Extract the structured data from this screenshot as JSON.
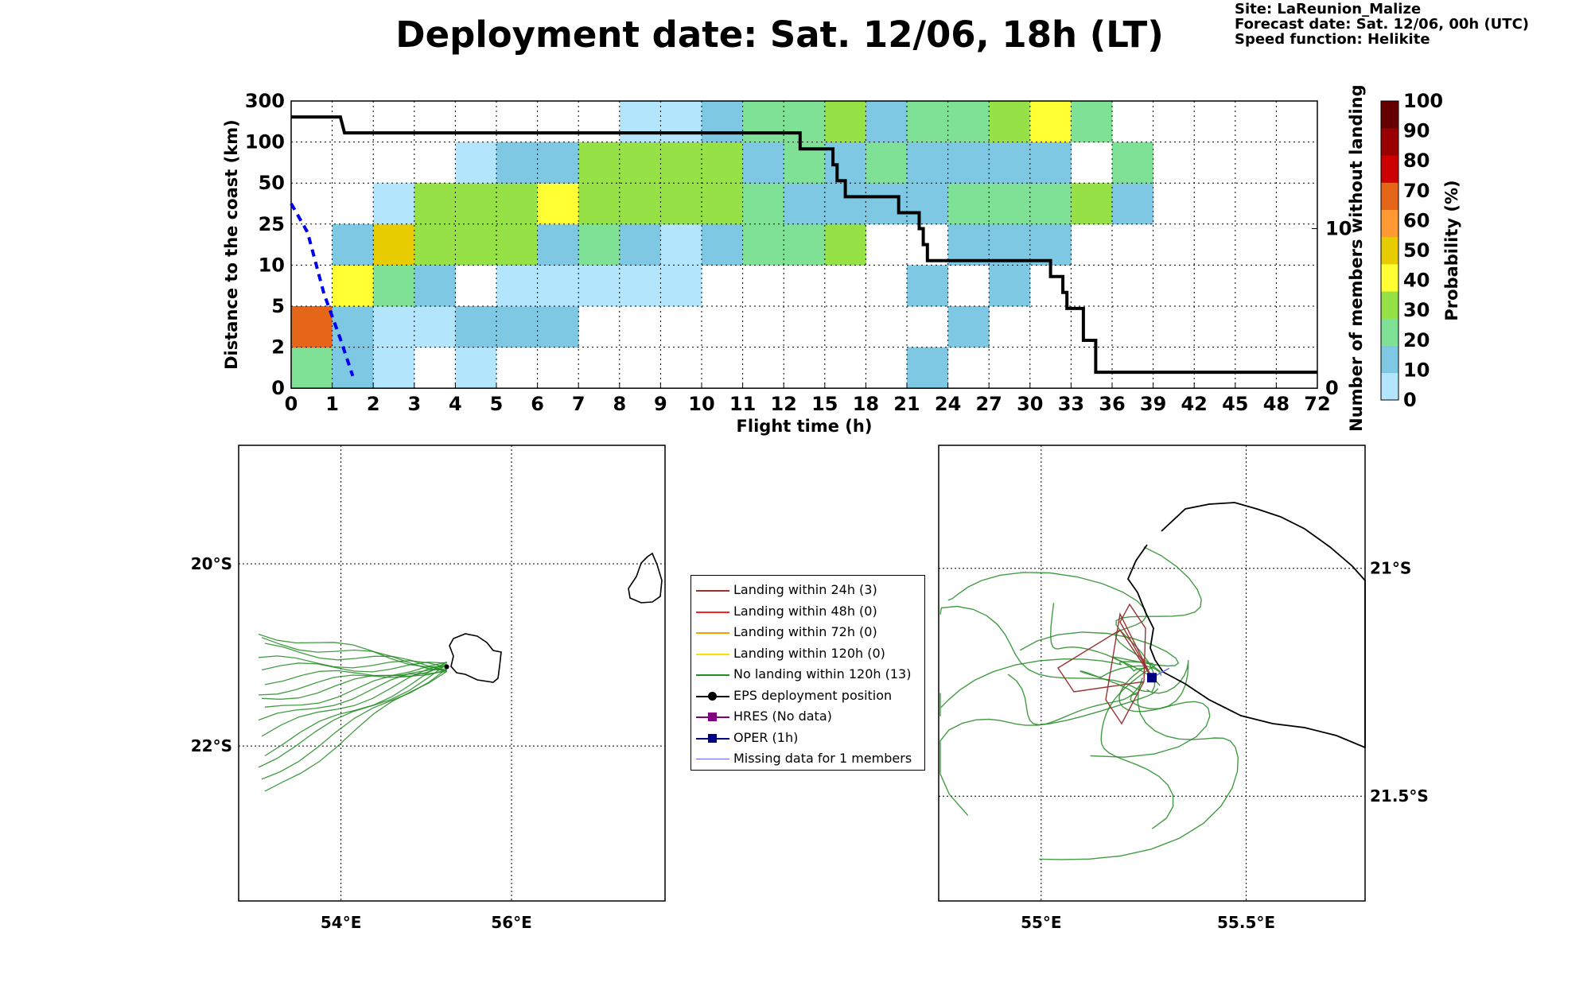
{
  "header": {
    "title": "Deployment date: Sat. 12/06, 18h (LT)",
    "site": "Site: LaReunion_Malize",
    "forecast": "Forecast date: Sat. 12/06, 00h (UTC)",
    "speed": "Speed function: Helikite"
  },
  "chart_data": [
    {
      "type": "heatmap",
      "xlabel": "Flight time (h)",
      "ylabel": "Distance to the coast (km)",
      "ylabel_right": "Number of members without landing",
      "colorbar_label": "Probability (%)",
      "x_ticks": [
        "0",
        "1",
        "2",
        "3",
        "4",
        "5",
        "6",
        "7",
        "8",
        "9",
        "10",
        "11",
        "12",
        "15",
        "18",
        "21",
        "24",
        "27",
        "30",
        "33",
        "36",
        "39",
        "42",
        "45",
        "48",
        "72"
      ],
      "y_ticks": [
        "0",
        "2",
        "5",
        "10",
        "25",
        "50",
        "100",
        "300"
      ],
      "right_ticks": [
        {
          "value": 0,
          "label": "0"
        },
        {
          "value": 10,
          "label": "10"
        }
      ],
      "right_ylim": [
        0,
        18
      ],
      "colorbar_ticks": [
        "0",
        "10",
        "20",
        "30",
        "40",
        "50",
        "60",
        "70",
        "80",
        "90",
        "100"
      ],
      "colorbar_colors": [
        "#b3e5fc",
        "#7ec8e3",
        "#7fe196",
        "#96e146",
        "#ffff33",
        "#e6cc00",
        "#ff9933",
        "#e66619",
        "#cc0000",
        "#990000",
        "#660000"
      ],
      "grid": true,
      "cells_note": "rows from 0-2 up to 100-300 km; columns = flight-time bins; value = colour class index (0-10), null = empty",
      "cells": [
        [
          2,
          1,
          0,
          null,
          0,
          null,
          null,
          null,
          null,
          null,
          null,
          null,
          null,
          null,
          null,
          1,
          null,
          null,
          null,
          null,
          null,
          null,
          null,
          null,
          null
        ],
        [
          7,
          1,
          0,
          0,
          1,
          1,
          1,
          null,
          null,
          null,
          null,
          null,
          null,
          null,
          null,
          null,
          1,
          null,
          null,
          null,
          null,
          null,
          null,
          null,
          null
        ],
        [
          null,
          4,
          2,
          1,
          null,
          0,
          0,
          0,
          0,
          0,
          null,
          null,
          null,
          null,
          null,
          1,
          null,
          1,
          null,
          null,
          null,
          null,
          null,
          null,
          null
        ],
        [
          null,
          1,
          5,
          3,
          3,
          3,
          1,
          2,
          1,
          0,
          1,
          2,
          2,
          3,
          null,
          null,
          1,
          1,
          1,
          null,
          null,
          null,
          null,
          null,
          null
        ],
        [
          null,
          null,
          0,
          3,
          3,
          3,
          4,
          3,
          3,
          3,
          3,
          2,
          1,
          1,
          1,
          1,
          2,
          2,
          2,
          3,
          1,
          null,
          null,
          null,
          null
        ],
        [
          null,
          null,
          null,
          null,
          0,
          1,
          1,
          3,
          3,
          3,
          3,
          1,
          2,
          1,
          2,
          1,
          1,
          1,
          1,
          null,
          2,
          null,
          null,
          null,
          null
        ],
        [
          null,
          null,
          null,
          null,
          null,
          null,
          null,
          null,
          0,
          0,
          1,
          2,
          2,
          3,
          1,
          2,
          2,
          3,
          4,
          2,
          null,
          null,
          null,
          null,
          null
        ]
      ],
      "members_line": [
        [
          0,
          17
        ],
        [
          1.2,
          17
        ],
        [
          1.3,
          16
        ],
        [
          12.4,
          16
        ],
        [
          12.4,
          15
        ],
        [
          13.2,
          15
        ],
        [
          13.2,
          14
        ],
        [
          13.3,
          14
        ],
        [
          13.3,
          13
        ],
        [
          13.5,
          13
        ],
        [
          13.5,
          12
        ],
        [
          14.8,
          12
        ],
        [
          14.8,
          11
        ],
        [
          15.3,
          11
        ],
        [
          15.3,
          10
        ],
        [
          15.4,
          10
        ],
        [
          15.4,
          9
        ],
        [
          15.5,
          9
        ],
        [
          15.5,
          8
        ],
        [
          18.5,
          8
        ],
        [
          18.5,
          7
        ],
        [
          18.8,
          7
        ],
        [
          18.8,
          6
        ],
        [
          18.9,
          6
        ],
        [
          18.9,
          5
        ],
        [
          19.3,
          5
        ],
        [
          19.3,
          3
        ],
        [
          19.6,
          3
        ],
        [
          19.6,
          1
        ],
        [
          25,
          1
        ]
      ],
      "oper_line": [
        [
          0,
          4.5
        ],
        [
          0.4,
          3.8
        ],
        [
          0.8,
          2.3
        ],
        [
          1.2,
          1.2
        ],
        [
          1.5,
          0.3
        ]
      ]
    },
    {
      "type": "scatter",
      "map": "left",
      "x_ticks": [
        "54°E",
        "56°E"
      ],
      "y_ticks": [
        "20°S",
        "22°S"
      ],
      "xlim": [
        52.8,
        57.8
      ],
      "ylim": [
        -23.7,
        -18.7
      ],
      "deployment_position": [
        55.24,
        -21.13
      ]
    },
    {
      "type": "scatter",
      "map": "right",
      "x_ticks": [
        "55°E",
        "55.5°E"
      ],
      "y_ticks": [
        "21°S",
        "21.5°S"
      ],
      "xlim": [
        54.75,
        55.79
      ],
      "ylim": [
        -21.73,
        -20.73
      ],
      "deployment_position": [
        55.27,
        -21.24
      ]
    }
  ],
  "legend": [
    {
      "label": "Landing within 24h (3)",
      "color": "#993333",
      "marker": "none"
    },
    {
      "label": "Landing within 48h (0)",
      "color": "#ff2222",
      "marker": "none"
    },
    {
      "label": "Landing within 72h (0)",
      "color": "#ff9900",
      "marker": "none"
    },
    {
      "label": "Landing within 120h (0)",
      "color": "#ffdd00",
      "marker": "none"
    },
    {
      "label": "No landing within 120h (13)",
      "color": "#228b22",
      "marker": "none"
    },
    {
      "label": "EPS deployment position",
      "color": "#000000",
      "marker": "circle"
    },
    {
      "label": "HRES (No data)",
      "color": "#800080",
      "marker": "square"
    },
    {
      "label": "OPER (1h)",
      "color": "#000080",
      "marker": "square"
    },
    {
      "label": "Missing data for 1 members",
      "color": "#6666ff",
      "marker": "thin"
    }
  ]
}
